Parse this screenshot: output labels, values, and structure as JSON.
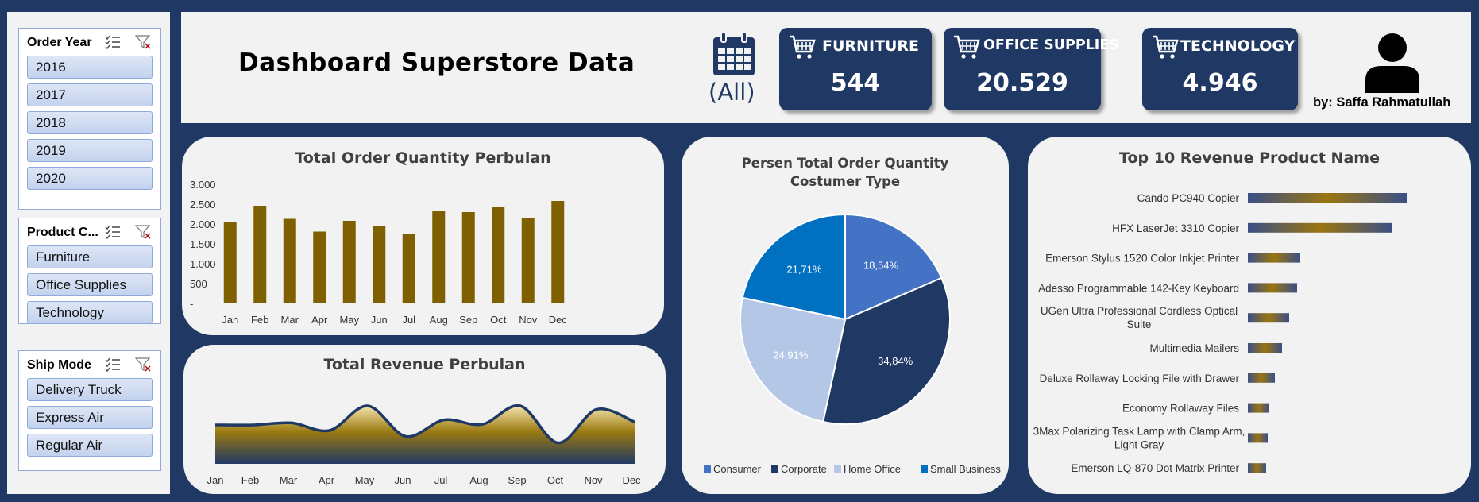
{
  "slicers": [
    {
      "title": "Order Year",
      "items": [
        "2016",
        "2017",
        "2018",
        "2019",
        "2020"
      ]
    },
    {
      "title": "Product C...",
      "items": [
        "Furniture",
        "Office Supplies",
        "Technology"
      ]
    },
    {
      "title": "Ship Mode",
      "items": [
        "Delivery Truck",
        "Express Air",
        "Regular Air"
      ]
    }
  ],
  "header": {
    "title": "Dashboard Superstore Data",
    "timeline_label": "(All)",
    "author": "by: Saffa Rahmatullah"
  },
  "kpis": [
    {
      "label": "FURNITURE",
      "value": "544"
    },
    {
      "label": "OFFICE SUPPLIES",
      "value": "20.529"
    },
    {
      "label": "TECHNOLOGY",
      "value": "4.946"
    }
  ],
  "colors": {
    "navy": "#1f3864",
    "bar": "#7f6000",
    "panel": "#f2f2f2"
  },
  "chart_data": [
    {
      "type": "bar",
      "title": "Total Order Quantity Perbulan",
      "categories": [
        "Jan",
        "Feb",
        "Mar",
        "Apr",
        "May",
        "Jun",
        "Jul",
        "Aug",
        "Sep",
        "Oct",
        "Nov",
        "Dec"
      ],
      "values": [
        2050,
        2460,
        2130,
        1810,
        2080,
        1950,
        1750,
        2320,
        2300,
        2440,
        2160,
        2580
      ],
      "yticks": [
        "-",
        "500",
        "1.000",
        "1.500",
        "2.000",
        "2.500",
        "3.000"
      ],
      "ylim": [
        0,
        3000
      ]
    },
    {
      "type": "area",
      "title": "Total Revenue Perbulan",
      "categories": [
        "Jan",
        "Feb",
        "Mar",
        "Apr",
        "May",
        "Jun",
        "Jul",
        "Aug",
        "Sep",
        "Oct",
        "Nov",
        "Dec"
      ],
      "values": [
        0.62,
        0.62,
        0.66,
        0.51,
        1.0,
        0.39,
        0.72,
        0.63,
        1.0,
        0.26,
        0.93,
        0.68
      ]
    },
    {
      "type": "pie",
      "title": "Persen Total Order Quantity Costumer Type",
      "slices": [
        {
          "name": "Consumer",
          "label": "18,54%",
          "value": 18.54,
          "color": "#4472c4"
        },
        {
          "name": "Corporate",
          "label": "34,84%",
          "value": 34.84,
          "color": "#203864"
        },
        {
          "name": "Home Office",
          "label": "24,91%",
          "value": 24.91,
          "color": "#b4c7e7"
        },
        {
          "name": "Small Business",
          "label": "21,71%",
          "value": 21.71,
          "color": "#0070c0"
        }
      ],
      "legend": "bottom"
    },
    {
      "type": "bar",
      "orientation": "horizontal",
      "title": "Top 10 Revenue Product Name",
      "categories": [
        "Cando PC940 Copier",
        "HFX LaserJet 3310 Copier",
        "Emerson Stylus 1520 Color Inkjet Printer",
        "Adesso Programmable 142-Key Keyboard",
        "UGen Ultra Professional Cordless Optical Suite",
        "Multimedia Mailers",
        "Deluxe Rollaway Locking File with Drawer",
        "Economy Rollaway Files",
        "3Max Polarizing Task Lamp with Clamp Arm, Light Gray",
        "Emerson LQ-870 Dot Matrix Printer"
      ],
      "values": [
        200,
        182,
        66,
        62,
        52,
        43,
        34,
        27,
        25,
        23
      ]
    }
  ]
}
